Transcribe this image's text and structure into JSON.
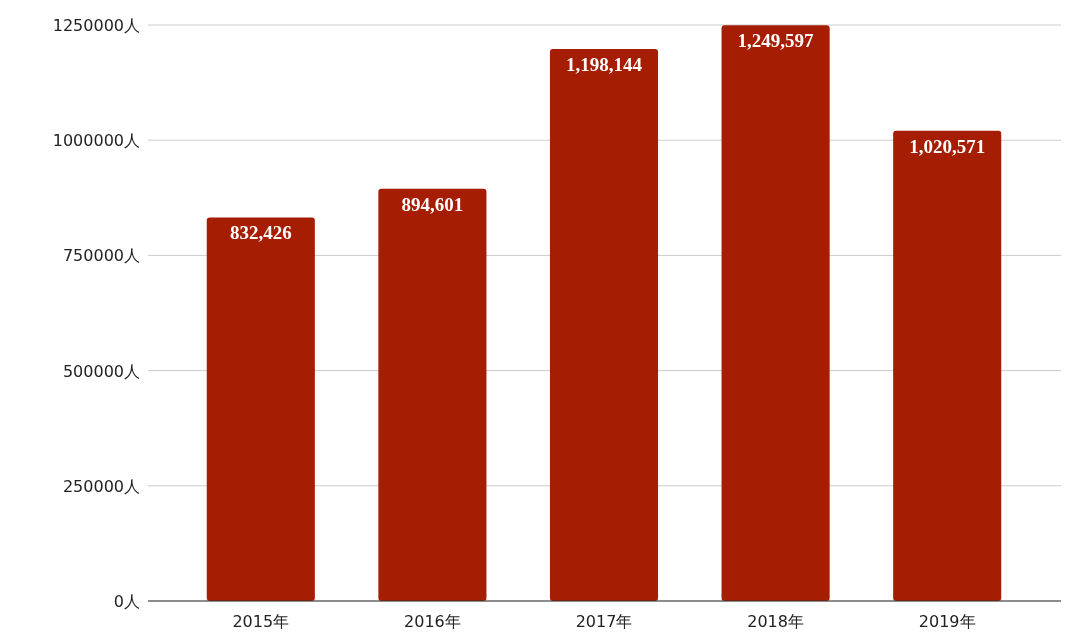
{
  "chart_data": {
    "type": "bar",
    "categories": [
      "2015年",
      "2016年",
      "2017年",
      "2018年",
      "2019年"
    ],
    "values": [
      832426,
      894601,
      1198144,
      1249597,
      1020571
    ],
    "value_labels": [
      "832,426",
      "894,601",
      "1,198,144",
      "1,249,597",
      "1,020,571"
    ],
    "color": "#a51d02",
    "ylim": [
      0,
      1250000
    ],
    "yticks": [
      {
        "value": 0,
        "label": "0人"
      },
      {
        "value": 250000,
        "label": "250000人"
      },
      {
        "value": 500000,
        "label": "500000人"
      },
      {
        "value": 750000,
        "label": "750000人"
      },
      {
        "value": 1000000,
        "label": "1000000人"
      },
      {
        "value": 1250000,
        "label": "1250000人"
      }
    ],
    "grid": "y"
  }
}
